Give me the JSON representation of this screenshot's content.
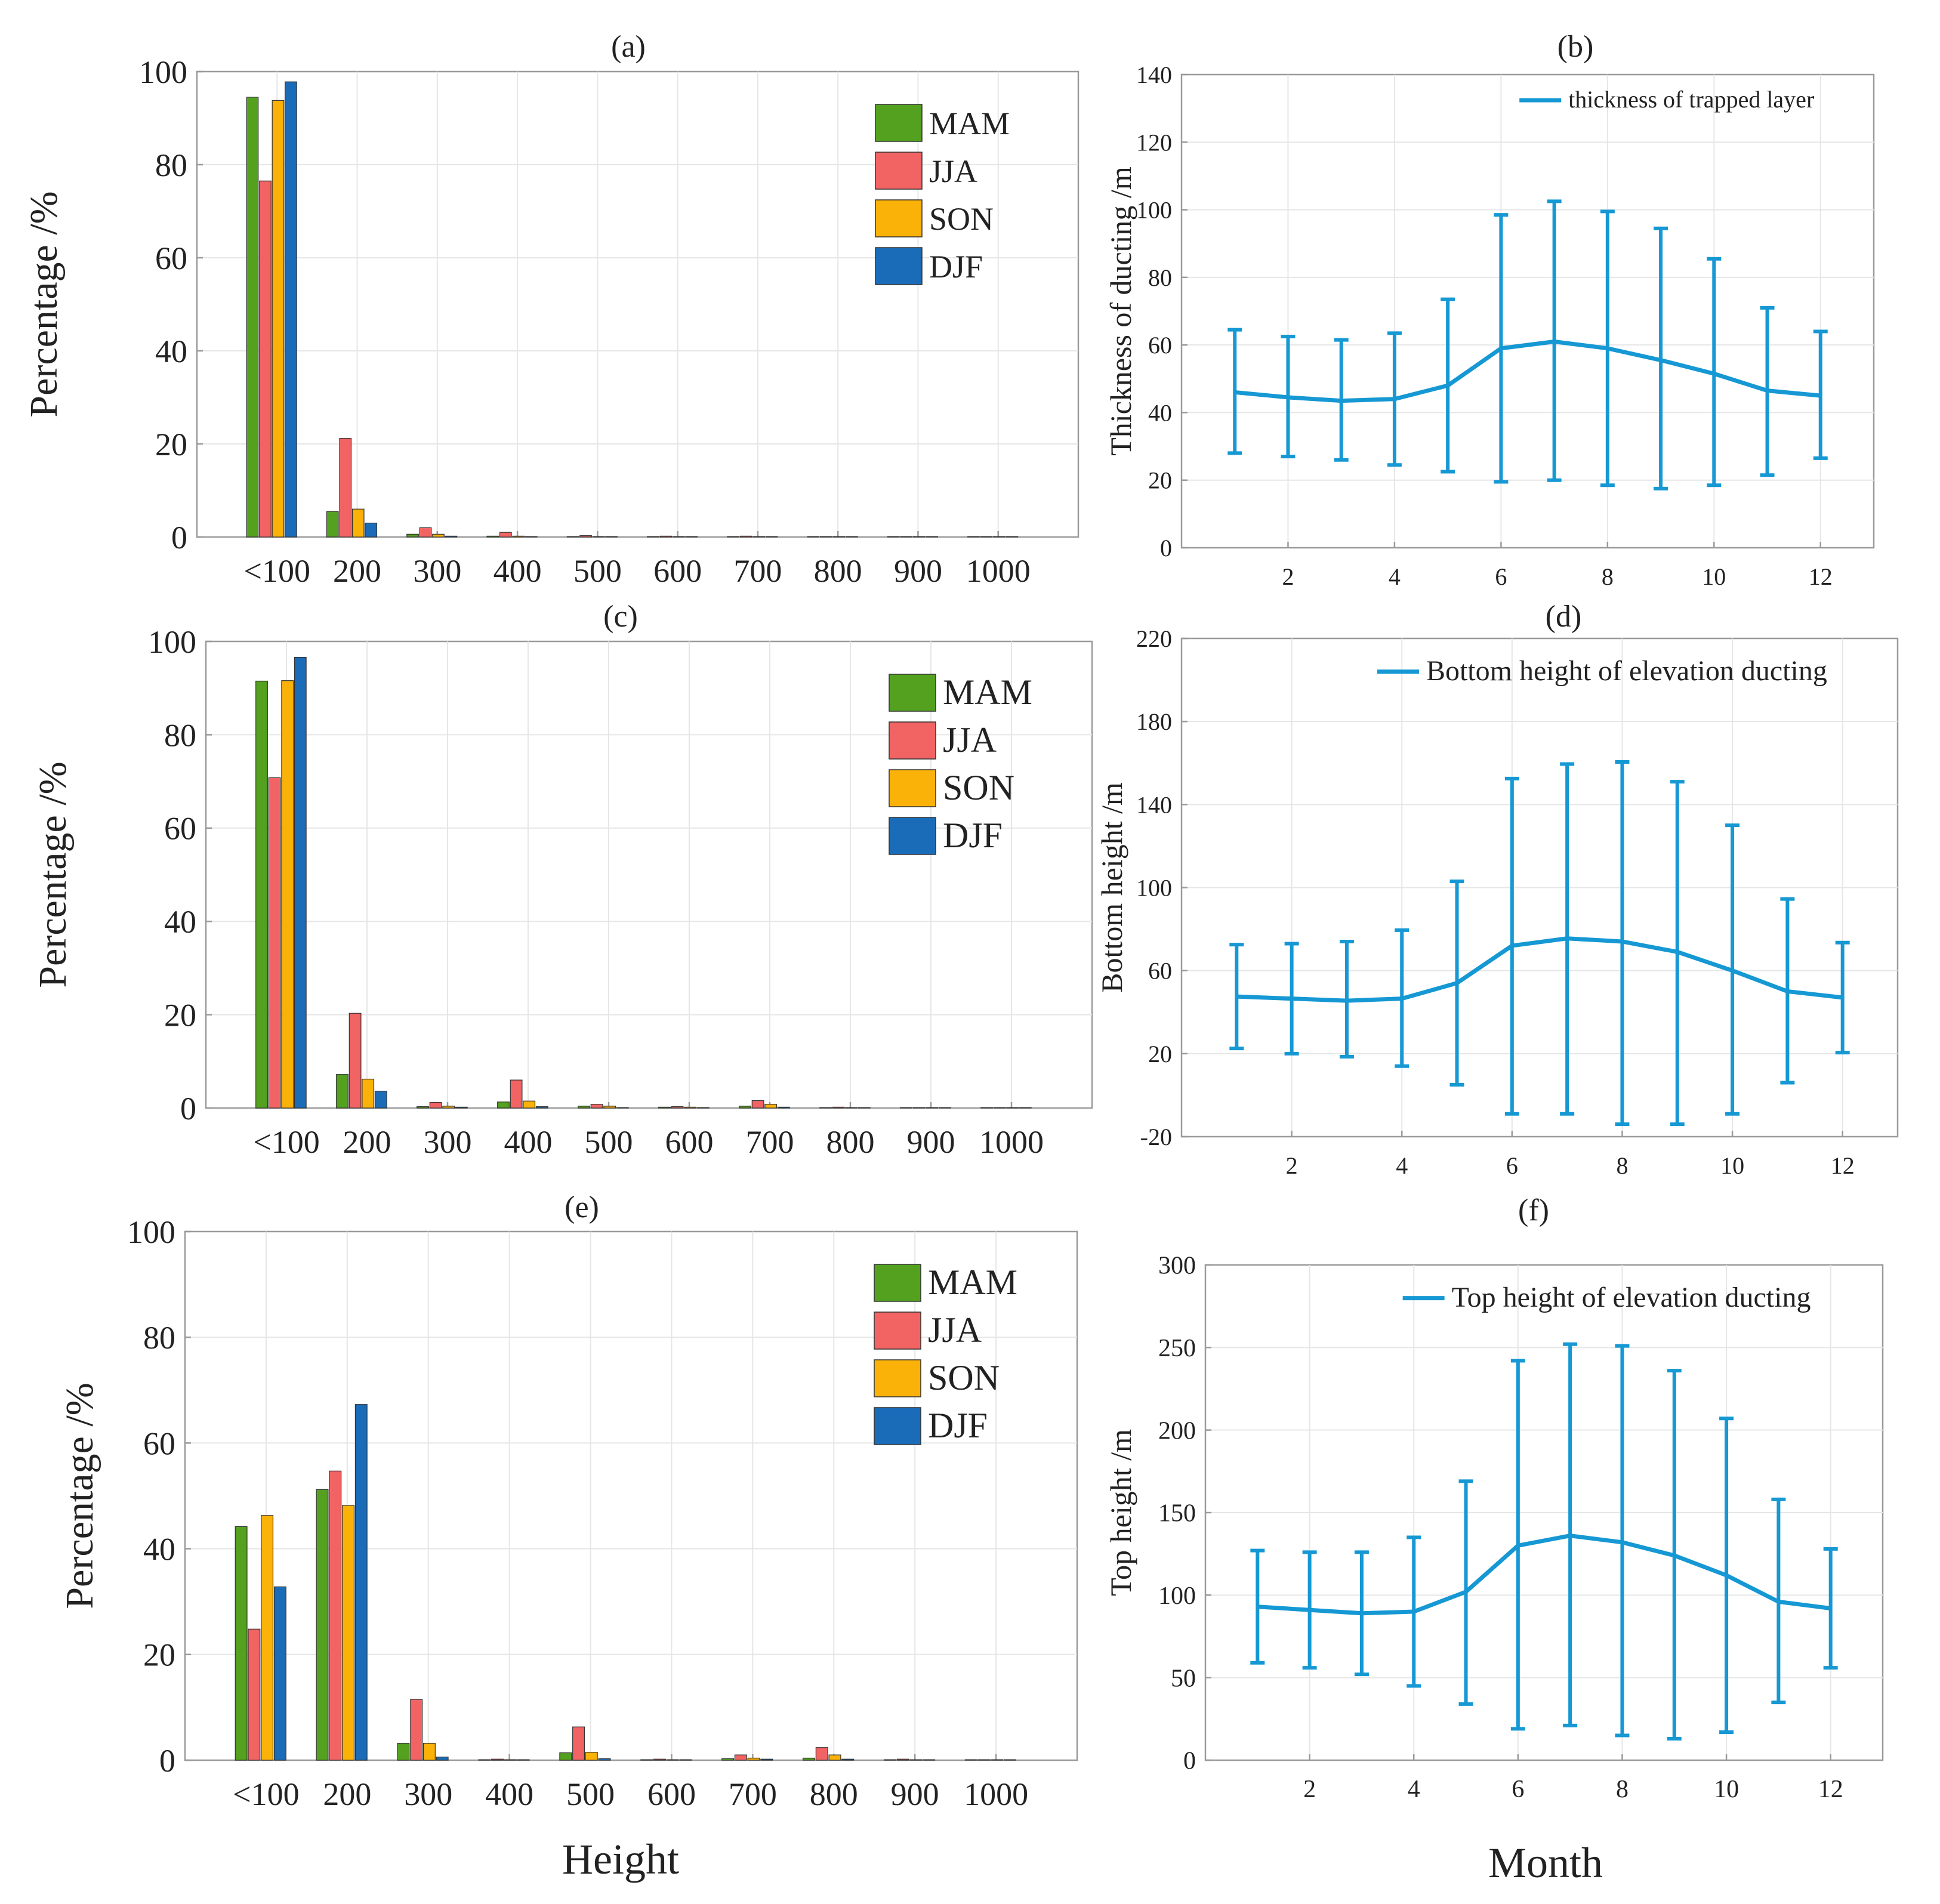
{
  "xlabel_bottom_left": "Height",
  "xlabel_bottom_right": "Month",
  "colors": {
    "MAM": "#53a11e",
    "JJA": "#f26464",
    "SON": "#fbb208",
    "DJF": "#1a6cb8",
    "line": "#1598d3",
    "grid": "#e6e6e6",
    "axis": "#9a9a9a"
  },
  "chart_data": [
    {
      "id": "a",
      "type": "bar",
      "title": "(a)",
      "ylabel": "Percentage /%",
      "xlabel": "",
      "ylim": [
        0,
        100
      ],
      "yticks": [
        0,
        20,
        40,
        60,
        80,
        100
      ],
      "categories": [
        "<100",
        "200",
        "300",
        "400",
        "500",
        "600",
        "700",
        "800",
        "900",
        "1000"
      ],
      "series": [
        {
          "name": "MAM",
          "values": [
            94.5,
            5.5,
            0.6,
            0.2,
            0.1,
            0.1,
            0.1,
            0.1,
            0.1,
            0.1
          ]
        },
        {
          "name": "JJA",
          "values": [
            76.5,
            21.2,
            2.0,
            1.0,
            0.3,
            0.2,
            0.2,
            0.1,
            0.1,
            0.1
          ]
        },
        {
          "name": "SON",
          "values": [
            93.8,
            6.0,
            0.6,
            0.2,
            0.1,
            0.1,
            0.1,
            0.1,
            0.1,
            0.1
          ]
        },
        {
          "name": "DJF",
          "values": [
            97.8,
            3.0,
            0.2,
            0.1,
            0.1,
            0.1,
            0.1,
            0.1,
            0.1,
            0.1
          ]
        }
      ],
      "legend": [
        "MAM",
        "JJA",
        "SON",
        "DJF"
      ],
      "legend_position": "top-right"
    },
    {
      "id": "b",
      "type": "line",
      "title": "(b)",
      "ylabel": "Thickness of ducting /m",
      "xlabel": "",
      "ylim": [
        0,
        140
      ],
      "yticks": [
        0,
        20,
        40,
        60,
        80,
        100,
        120,
        140
      ],
      "xlim": [
        0,
        13
      ],
      "xticks": [
        2,
        4,
        6,
        8,
        10,
        12
      ],
      "x": [
        1,
        2,
        3,
        4,
        5,
        6,
        7,
        8,
        9,
        10,
        11,
        12
      ],
      "y": [
        46,
        44.5,
        43.5,
        44,
        48,
        59,
        61,
        59,
        55.5,
        51.5,
        46.5,
        45
      ],
      "err_low": [
        28,
        27,
        26,
        24.5,
        22.5,
        19.5,
        20,
        18.5,
        17.5,
        18.5,
        21.5,
        26.5
      ],
      "err_high": [
        64.5,
        62.5,
        61.5,
        63.5,
        73.5,
        98.5,
        102.5,
        99.5,
        94.5,
        85.5,
        71,
        64
      ],
      "legend": [
        "thickness of trapped layer"
      ],
      "legend_position": "top-right"
    },
    {
      "id": "c",
      "type": "bar",
      "title": "(c)",
      "ylabel": "Percentage /%",
      "xlabel": "",
      "ylim": [
        0,
        100
      ],
      "yticks": [
        0,
        20,
        40,
        60,
        80,
        100
      ],
      "categories": [
        "<100",
        "200",
        "300",
        "400",
        "500",
        "600",
        "700",
        "800",
        "900",
        "1000"
      ],
      "series": [
        {
          "name": "MAM",
          "values": [
            91.5,
            7.2,
            0.3,
            1.3,
            0.4,
            0.2,
            0.4,
            0.1,
            0.1,
            0.1
          ]
        },
        {
          "name": "JJA",
          "values": [
            70.8,
            20.3,
            1.2,
            6.0,
            0.8,
            0.3,
            1.6,
            0.2,
            0.1,
            0.1
          ]
        },
        {
          "name": "SON",
          "values": [
            91.6,
            6.2,
            0.4,
            1.5,
            0.4,
            0.2,
            0.8,
            0.1,
            0.1,
            0.1
          ]
        },
        {
          "name": "DJF",
          "values": [
            96.6,
            3.6,
            0.2,
            0.3,
            0.1,
            0.1,
            0.2,
            0.1,
            0.1,
            0.1
          ]
        }
      ],
      "legend": [
        "MAM",
        "JJA",
        "SON",
        "DJF"
      ],
      "legend_position": "top-right"
    },
    {
      "id": "d",
      "type": "line",
      "title": "(d)",
      "ylabel": "Bottom height /m",
      "xlabel": "",
      "ylim": [
        -20,
        220
      ],
      "yticks": [
        -20,
        20,
        60,
        100,
        140,
        180,
        220
      ],
      "xlim": [
        0,
        13
      ],
      "xticks": [
        2,
        4,
        6,
        8,
        10,
        12
      ],
      "x": [
        1,
        2,
        3,
        4,
        5,
        6,
        7,
        8,
        9,
        10,
        11,
        12
      ],
      "y": [
        47.5,
        46.5,
        45.5,
        46.5,
        54,
        72,
        75.5,
        74,
        69,
        60,
        50,
        47
      ],
      "err_low": [
        22.5,
        20,
        18.5,
        14,
        5,
        -9,
        -9,
        -14,
        -14,
        -9,
        6,
        20.5
      ],
      "err_high": [
        72.5,
        73,
        74,
        79.5,
        103,
        152.5,
        159.5,
        160.5,
        151,
        130,
        94.5,
        73.5
      ],
      "legend": [
        "Bottom height of elevation ducting"
      ],
      "legend_position": "top-right"
    },
    {
      "id": "e",
      "type": "bar",
      "title": "(e)",
      "ylabel": "Percentage /%",
      "xlabel": "Height",
      "ylim": [
        0,
        100
      ],
      "yticks": [
        0,
        20,
        40,
        60,
        80,
        100
      ],
      "categories": [
        "<100",
        "200",
        "300",
        "400",
        "500",
        "600",
        "700",
        "800",
        "900",
        "1000"
      ],
      "series": [
        {
          "name": "MAM",
          "values": [
            44.2,
            51.2,
            3.2,
            0.1,
            1.4,
            0.1,
            0.3,
            0.4,
            0.1,
            0.1
          ]
        },
        {
          "name": "JJA",
          "values": [
            24.8,
            54.7,
            11.5,
            0.2,
            6.3,
            0.2,
            1.0,
            2.4,
            0.2,
            0.1
          ]
        },
        {
          "name": "SON",
          "values": [
            46.3,
            48.2,
            3.2,
            0.1,
            1.5,
            0.1,
            0.4,
            1.0,
            0.1,
            0.1
          ]
        },
        {
          "name": "DJF",
          "values": [
            32.8,
            67.3,
            0.6,
            0.1,
            0.3,
            0.1,
            0.2,
            0.2,
            0.1,
            0.1
          ]
        }
      ],
      "legend": [
        "MAM",
        "JJA",
        "SON",
        "DJF"
      ],
      "legend_position": "top-right"
    },
    {
      "id": "f",
      "type": "line",
      "title": "(f)",
      "ylabel": "Top height /m",
      "xlabel": "Month",
      "ylim": [
        0,
        300
      ],
      "yticks": [
        0,
        50,
        100,
        150,
        200,
        250,
        300
      ],
      "xlim": [
        0,
        13
      ],
      "xticks": [
        2,
        4,
        6,
        8,
        10,
        12
      ],
      "x": [
        1,
        2,
        3,
        4,
        5,
        6,
        7,
        8,
        9,
        10,
        11,
        12
      ],
      "y": [
        93,
        91,
        89,
        90,
        102,
        130,
        136,
        132,
        124,
        112,
        96,
        92
      ],
      "err_low": [
        59,
        56,
        52,
        45,
        34,
        19,
        21,
        15,
        13,
        17,
        35,
        56
      ],
      "err_high": [
        127,
        126,
        126,
        135,
        169,
        242,
        252,
        251,
        236,
        207,
        158,
        128
      ],
      "legend": [
        "Top height of elevation ducting"
      ],
      "legend_position": "top-right"
    }
  ]
}
